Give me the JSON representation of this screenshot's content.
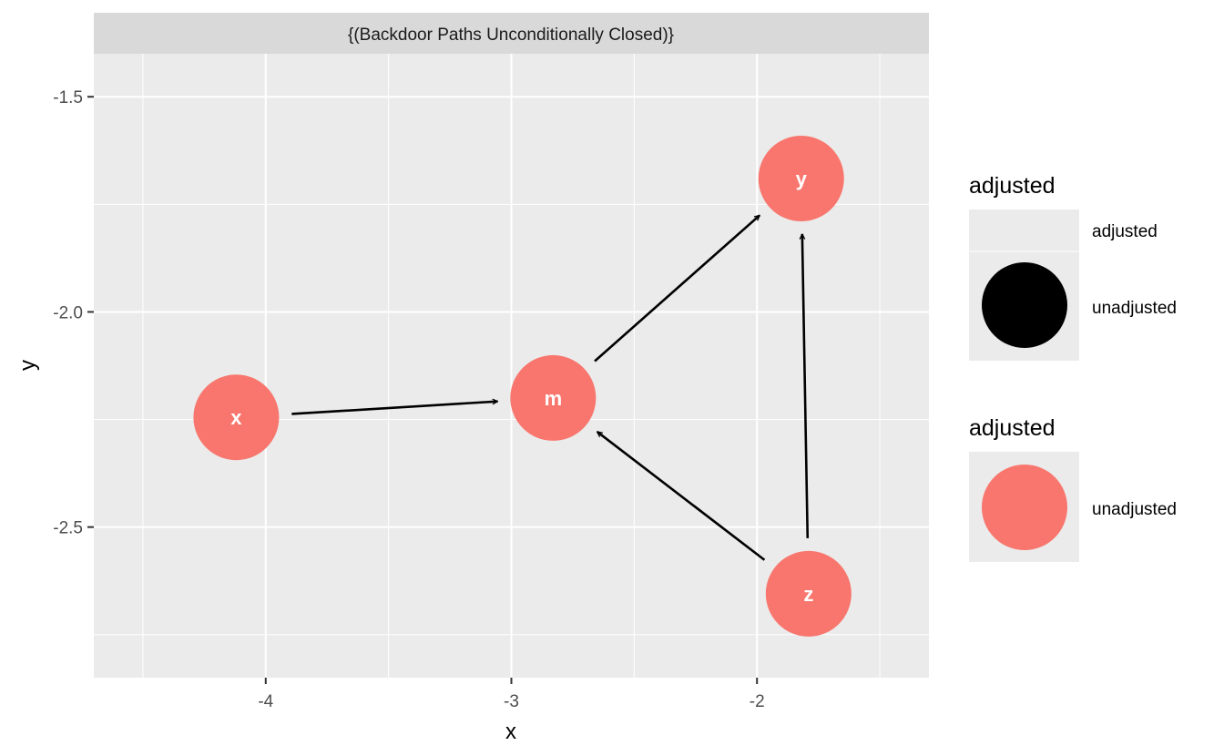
{
  "chart_data": {
    "type": "scatter",
    "facet_label": "{(Backdoor Paths Unconditionally Closed)}",
    "xlabel": "x",
    "ylabel": "y",
    "xlim": [
      -4.7,
      -1.3
    ],
    "ylim": [
      -2.85,
      -1.4
    ],
    "x_ticks": [
      -4,
      -3,
      -2
    ],
    "x_tick_labels": [
      "-4",
      "-3",
      "-2"
    ],
    "y_ticks": [
      -1.5,
      -2.0,
      -2.5
    ],
    "y_tick_labels": [
      "-1.5",
      "-2.0",
      "-2.5"
    ],
    "grid": true,
    "nodes": [
      {
        "id": "x",
        "label": "x",
        "x": -4.12,
        "y": -2.245,
        "adjusted": "unadjusted"
      },
      {
        "id": "m",
        "label": "m",
        "x": -2.83,
        "y": -2.2,
        "adjusted": "unadjusted"
      },
      {
        "id": "y",
        "label": "y",
        "x": -1.82,
        "y": -1.69,
        "adjusted": "unadjusted"
      },
      {
        "id": "z",
        "label": "z",
        "x": -1.79,
        "y": -2.655,
        "adjusted": "unadjusted"
      }
    ],
    "edges": [
      {
        "from": "x",
        "to": "m"
      },
      {
        "from": "m",
        "to": "y"
      },
      {
        "from": "z",
        "to": "m"
      },
      {
        "from": "z",
        "to": "y"
      }
    ],
    "node_color": "#F8766D",
    "legends": [
      {
        "title": "adjusted",
        "entries": [
          {
            "label": "adjusted",
            "swatch": "none"
          },
          {
            "label": "unadjusted",
            "swatch": "#000000"
          }
        ]
      },
      {
        "title": "adjusted",
        "entries": [
          {
            "label": "unadjusted",
            "swatch": "#F8766D"
          }
        ]
      }
    ]
  }
}
